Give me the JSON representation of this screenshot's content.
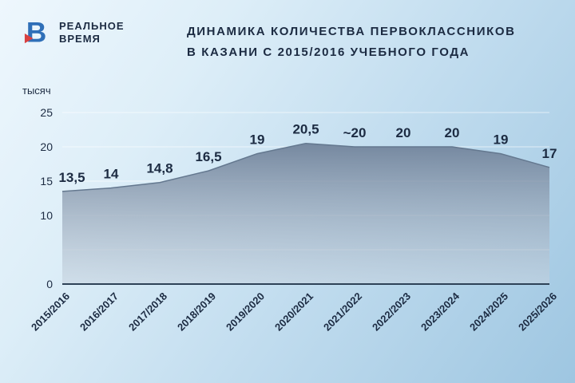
{
  "brand": {
    "line1": "РЕАЛЬНОЕ",
    "line2": "ВРЕМЯ"
  },
  "title": {
    "line1": "ДИНАМИКА КОЛИЧЕСТВА ПЕРВОКЛАССНИКОВ",
    "line2": "В КАЗАНИ С 2015/2016 УЧЕБНОГО ГОДА"
  },
  "colors": {
    "text": "#1c2b42",
    "grid": "rgba(255,255,255,0.6)",
    "axis": "#2e4257",
    "line": "#64788f",
    "area_top": "#6e8098",
    "area_bottom": "#c6d2de",
    "brand_blue": "#2f6fb8",
    "brand_red": "#d84040",
    "background_top": "#eef7fd",
    "background_bottom": "#9ec6e1"
  },
  "chart_data": {
    "type": "area",
    "title": "Динамика количества первоклассников в Казани с 2015/2016 учебного года",
    "xlabel": "",
    "ylabel": "тысяч",
    "ylim": [
      0,
      25
    ],
    "yticks_labeled": [
      25,
      20,
      15,
      10,
      0
    ],
    "gridlines": [
      5,
      10,
      15,
      20,
      25
    ],
    "grid": true,
    "legend": false,
    "categories": [
      "2015/2016",
      "2016/2017",
      "2017/2018",
      "2018/2019",
      "2019/2020",
      "2020/2021",
      "2021/2022",
      "2022/2023",
      "2023/2024",
      "2024/2025",
      "2025/2026"
    ],
    "values": [
      13.5,
      14,
      14.8,
      16.5,
      19,
      20.5,
      20,
      20,
      20,
      19,
      17
    ],
    "value_labels": [
      "13,5",
      "14",
      "14,8",
      "16,5",
      "19",
      "20,5",
      "~20",
      "20",
      "20",
      "19",
      "17"
    ]
  }
}
